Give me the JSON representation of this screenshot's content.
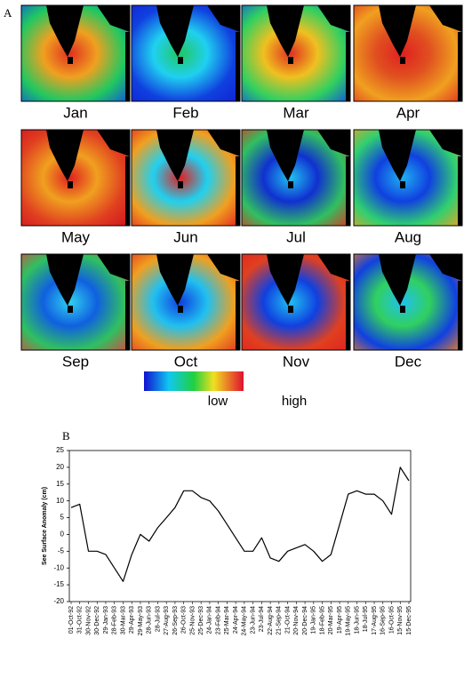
{
  "panel_a": {
    "label": "A",
    "months": [
      "Jan",
      "Feb",
      "Mar",
      "Apr",
      "May",
      "Jun",
      "Jul",
      "Aug",
      "Sep",
      "Oct",
      "Nov",
      "Dec"
    ],
    "legend_low": "low",
    "legend_high": "high"
  },
  "chart_data": {
    "type": "line",
    "label": "B",
    "y_label": "See Surface Anomaly (cm)",
    "categories": [
      "01-Oct-92",
      "31-Oct-92",
      "30-Nov-92",
      "30-Dec-92",
      "29-Jan-93",
      "28-Feb-93",
      "30-Mar-93",
      "29-Apr-93",
      "29-May-93",
      "28-Jun-93",
      "28-Jul-93",
      "27-Aug-93",
      "26-Sep-93",
      "26-Oct-93",
      "25-Nov-93",
      "25-Dec-93",
      "24-Jan-94",
      "23-Feb-94",
      "25-Mar-94",
      "24-Apr-94",
      "24-May-94",
      "23-Jun-94",
      "23-Jul-94",
      "22-Aug-94",
      "21-Sep-94",
      "21-Oct-94",
      "20-Nov-94",
      "20-Dec-94",
      "19-Jan-95",
      "18-Feb-95",
      "20-Mar-95",
      "19-Apr-95",
      "19-May-95",
      "18-Jun-95",
      "18-Jul-95",
      "17-Aug-95",
      "16-Sep-95",
      "16-Oct-95",
      "15-Nov-95",
      "15-Dec-95"
    ],
    "values": [
      8,
      9,
      -5,
      -5,
      -6,
      -10,
      -14,
      -6,
      0,
      -2,
      2,
      5,
      8,
      13,
      13,
      11,
      10,
      7,
      3,
      -1,
      -5,
      -5,
      -1,
      -7,
      -8,
      -5,
      -4,
      -3,
      -5,
      -8,
      -6,
      3,
      12,
      13,
      12,
      12,
      10,
      6,
      20,
      16
    ],
    "color": "#000000",
    "ylim": [
      -20,
      25
    ],
    "yticks": [
      -20,
      -15,
      -10,
      -5,
      0,
      5,
      10,
      15,
      20,
      25
    ]
  }
}
